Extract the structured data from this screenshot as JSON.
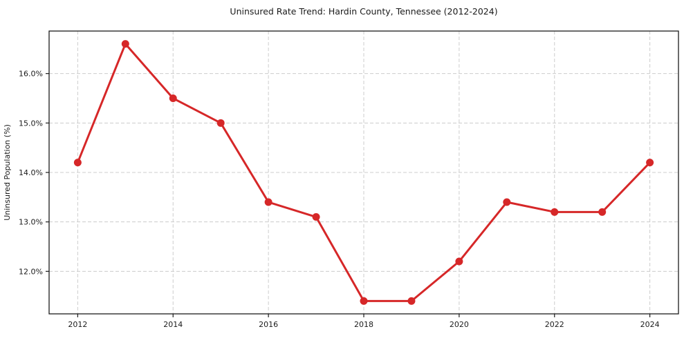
{
  "chart_data": {
    "type": "line",
    "title": "Uninsured Rate Trend: Hardin County, Tennessee (2012-2024)",
    "xlabel": "",
    "ylabel": "Uninsured Population (%)",
    "x": [
      2012,
      2013,
      2014,
      2015,
      2016,
      2017,
      2018,
      2019,
      2020,
      2021,
      2022,
      2023,
      2024
    ],
    "values": [
      14.2,
      16.6,
      15.5,
      15.0,
      13.4,
      13.1,
      11.4,
      11.4,
      12.2,
      13.4,
      13.2,
      13.2,
      14.2
    ],
    "xlim": [
      2011.4,
      2024.6
    ],
    "ylim": [
      11.14,
      16.86
    ],
    "xticks": [
      2012,
      2014,
      2016,
      2018,
      2020,
      2022,
      2024
    ],
    "xtick_labels": [
      "2012",
      "2014",
      "2016",
      "2018",
      "2020",
      "2022",
      "2024"
    ],
    "yticks": [
      12,
      13,
      14,
      15,
      16
    ],
    "ytick_labels": [
      "12.0%",
      "13.0%",
      "14.0%",
      "15.0%",
      "16.0%"
    ],
    "grid": true,
    "grid_style": "dashed",
    "legend_position": "none",
    "line_color": "#d62728",
    "marker": "circle",
    "grid_color": "#cccccc",
    "spine_color": "#1a1a1a",
    "background_color": "#ffffff"
  }
}
